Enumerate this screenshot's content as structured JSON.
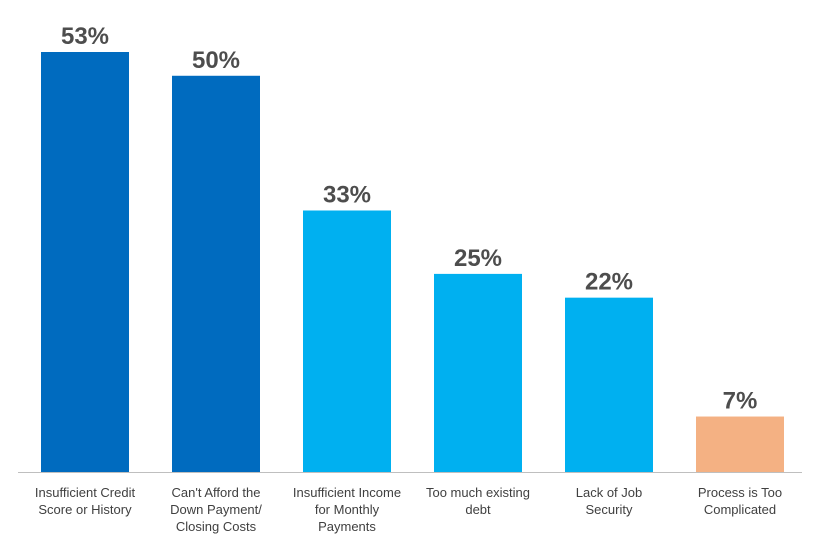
{
  "chart_data": {
    "type": "bar",
    "categories": [
      [
        "Insufficient Credit",
        "Score or History"
      ],
      [
        "Can't Afford the",
        "Down Payment/",
        "Closing Costs"
      ],
      [
        "Insufficient Income",
        "for Monthly",
        "Payments"
      ],
      [
        "Too much existing",
        "debt"
      ],
      [
        "Lack of Job",
        "Security"
      ],
      [
        "Process is Too",
        "Complicated"
      ]
    ],
    "values": [
      53,
      50,
      33,
      25,
      22,
      7
    ],
    "value_labels": [
      "53%",
      "50%",
      "33%",
      "25%",
      "22%",
      "7%"
    ],
    "bar_colors": [
      "#006bbf",
      "#006bbf",
      "#00b0f0",
      "#00b0f0",
      "#00b0f0",
      "#f4b183"
    ],
    "ylim": [
      0,
      53
    ],
    "grid": false,
    "axis_color": "#bfbfbf"
  }
}
